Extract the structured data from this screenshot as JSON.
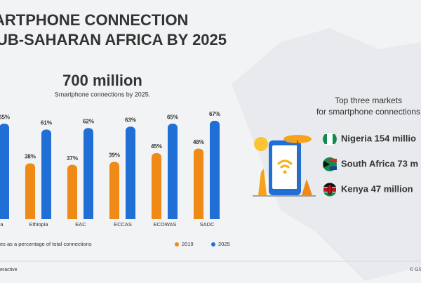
{
  "header": {
    "title_lines": [
      "ARTPHONE CONNECTION",
      "UB-SAHARAN AFRICA BY 2025"
    ]
  },
  "chart_data": {
    "type": "bar",
    "headline": "700 million",
    "subtitle": "Smartphone connections by 2025.",
    "categories": [
      "Africa",
      "Ethiopia",
      "EAC",
      "ECCAS",
      "ECOWAS",
      "SADC"
    ],
    "series": [
      {
        "name": "2019",
        "color": "#f08a16",
        "values": [
          null,
          38,
          37,
          39,
          45,
          48
        ],
        "value_labels": [
          null,
          "38%",
          "37%",
          "39%",
          "45%",
          "48%"
        ]
      },
      {
        "name": "2025",
        "color": "#1f6fd6",
        "values": [
          65,
          61,
          62,
          63,
          65,
          67
        ],
        "value_labels": [
          "65%",
          "61%",
          "62%",
          "63%",
          "65%",
          "67%"
        ]
      }
    ],
    "ylim": [
      0,
      100
    ],
    "footnote": "es as a percentage of total connections"
  },
  "markets": {
    "title_lines": [
      "Top three markets",
      "for smartphone connections"
    ],
    "items": [
      "Nigeria 154 millio",
      "South Africa 73 m",
      "Kenya 47 million"
    ]
  },
  "footer": {
    "left": "eractive",
    "right": "© GS"
  }
}
